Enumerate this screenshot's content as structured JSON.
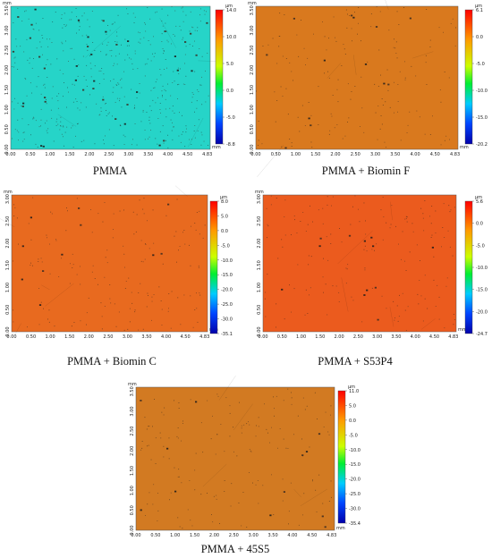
{
  "panels": [
    {
      "caption": "PMMA",
      "map_color": "#26D4C8",
      "unit": "µm",
      "axis_unit": "mm",
      "colorbar_labels": [
        "14.0",
        "10.0",
        "5.0",
        "0.0",
        "-5.0",
        "-8.8"
      ],
      "x_ticks": [
        "0.00",
        "0.50",
        "1.00",
        "1.50",
        "2.00",
        "2.50",
        "3.00",
        "3.50",
        "4.00",
        "4.50",
        "4.83"
      ],
      "y_ticks": [
        "0.00",
        "0.50",
        "1.00",
        "1.50",
        "2.00",
        "2.50",
        "3.00",
        "3.50"
      ]
    },
    {
      "caption": "PMMA + Biomin F",
      "map_color": "#D9791E",
      "unit": "µm",
      "axis_unit": "mm",
      "colorbar_labels": [
        "6.1",
        "0.0",
        "-5.0",
        "-10.0",
        "-15.0",
        "-20.2"
      ],
      "x_ticks": [
        "0.00",
        "0.50",
        "1.00",
        "1.50",
        "2.00",
        "2.50",
        "3.00",
        "3.50",
        "4.00",
        "4.50",
        "4.83"
      ],
      "y_ticks": [
        "0.00",
        "0.50",
        "1.00",
        "1.50",
        "2.00",
        "2.50",
        "3.00",
        "3.50"
      ]
    },
    {
      "caption": "PMMA + Biomin C",
      "map_color": "#E86A1F",
      "unit": "µm",
      "axis_unit": "mm",
      "colorbar_labels": [
        "8.0",
        "5.0",
        "0.0",
        "-5.0",
        "-10.0",
        "-15.0",
        "-20.0",
        "-25.0",
        "-30.0",
        "-35.1"
      ],
      "x_ticks": [
        "0.00",
        "0.50",
        "1.00",
        "1.50",
        "2.00",
        "2.50",
        "3.00",
        "3.50",
        "4.00",
        "4.50",
        "4.83"
      ],
      "y_ticks": [
        "0.00",
        "0.50",
        "1.00",
        "1.50",
        "2.00",
        "2.50",
        "3.00"
      ]
    },
    {
      "caption": "PMMA + S53P4",
      "map_color": "#EB5B1E",
      "unit": "µm",
      "axis_unit": "mm",
      "colorbar_labels": [
        "5.6",
        "0.0",
        "-5.0",
        "-10.0",
        "-15.0",
        "-20.0",
        "-24.7"
      ],
      "x_ticks": [
        "0.00",
        "0.50",
        "1.00",
        "1.50",
        "2.00",
        "2.50",
        "3.00",
        "3.50",
        "4.00",
        "4.50",
        "4.83"
      ],
      "y_ticks": [
        "0.00",
        "0.50",
        "1.00",
        "1.50",
        "2.00",
        "2.50",
        "3.00"
      ]
    },
    {
      "caption": "PMMA + 45S5",
      "map_color": "#D27A22",
      "unit": "µm",
      "axis_unit": "mm",
      "colorbar_labels": [
        "11.0",
        "5.0",
        "0.0",
        "-5.0",
        "-10.0",
        "-15.0",
        "-20.0",
        "-25.0",
        "-30.0",
        "-35.4"
      ],
      "x_ticks": [
        "0.00",
        "0.50",
        "1.00",
        "1.50",
        "2.00",
        "2.50",
        "3.00",
        "3.50",
        "4.00",
        "4.50",
        "4.83"
      ],
      "y_ticks": [
        "0.00",
        "0.50",
        "1.00",
        "1.50",
        "2.00",
        "2.50",
        "3.00",
        "3.50"
      ]
    }
  ]
}
